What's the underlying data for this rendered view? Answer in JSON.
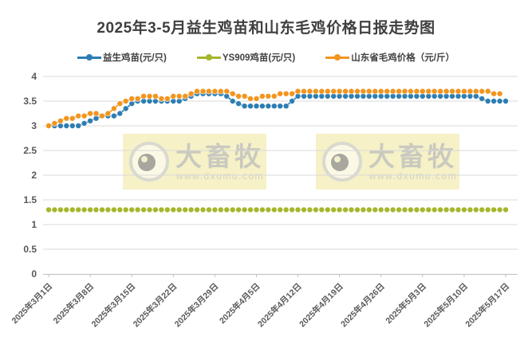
{
  "watermark": {
    "brand": "大畜牧",
    "url": "www.dxumu.com"
  },
  "chart_data": {
    "type": "line",
    "title": "2025年3-5月益生鸡苗和山东毛鸡价格日报走势图",
    "xlabel": "",
    "ylabel": "",
    "ylim": [
      0,
      4
    ],
    "y_step": 0.5,
    "grid": "horizontal",
    "legend_position": "top",
    "x_start_date": "2025年3月1日",
    "x_end_date": "2025年5月17日",
    "x_tick_interval_days": 7,
    "x_tick_labels": [
      "2025年3月1日",
      "2025年3月8日",
      "2025年3月15日",
      "2025年3月22日",
      "2025年3月29日",
      "2025年4月5日",
      "2025年4月12日",
      "2025年4月19日",
      "2025年4月26日",
      "2025年5月3日",
      "2025年5月10日",
      "2025年5月17日"
    ],
    "colors": {
      "grid": "#d9d9d9",
      "axis": "#bfbfbf",
      "axis_text": "#595959",
      "title_text": "#3f3f3f"
    },
    "series": [
      {
        "name": "益生鸡苗(元/只)",
        "color": "#2e7db2",
        "values": [
          3.0,
          3.0,
          3.0,
          3.0,
          3.0,
          3.0,
          3.05,
          3.1,
          3.15,
          3.2,
          3.2,
          3.2,
          3.25,
          3.35,
          3.45,
          3.5,
          3.5,
          3.5,
          3.5,
          3.5,
          3.5,
          3.5,
          3.5,
          3.55,
          3.6,
          3.65,
          3.65,
          3.65,
          3.65,
          3.65,
          3.6,
          3.5,
          3.45,
          3.4,
          3.4,
          3.4,
          3.4,
          3.4,
          3.4,
          3.4,
          3.4,
          3.5,
          3.6,
          3.6,
          3.6,
          3.6,
          3.6,
          3.6,
          3.6,
          3.6,
          3.6,
          3.6,
          3.6,
          3.6,
          3.6,
          3.6,
          3.6,
          3.6,
          3.6,
          3.6,
          3.6,
          3.6,
          3.6,
          3.6,
          3.6,
          3.6,
          3.6,
          3.6,
          3.6,
          3.6,
          3.6,
          3.6,
          3.6,
          3.55,
          3.5,
          3.5,
          3.5,
          3.5
        ]
      },
      {
        "name": "YS909鸡苗(元/只)",
        "color": "#a5b62a",
        "values": [
          1.3,
          1.3,
          1.3,
          1.3,
          1.3,
          1.3,
          1.3,
          1.3,
          1.3,
          1.3,
          1.3,
          1.3,
          1.3,
          1.3,
          1.3,
          1.3,
          1.3,
          1.3,
          1.3,
          1.3,
          1.3,
          1.3,
          1.3,
          1.3,
          1.3,
          1.3,
          1.3,
          1.3,
          1.3,
          1.3,
          1.3,
          1.3,
          1.3,
          1.3,
          1.3,
          1.3,
          1.3,
          1.3,
          1.3,
          1.3,
          1.3,
          1.3,
          1.3,
          1.3,
          1.3,
          1.3,
          1.3,
          1.3,
          1.3,
          1.3,
          1.3,
          1.3,
          1.3,
          1.3,
          1.3,
          1.3,
          1.3,
          1.3,
          1.3,
          1.3,
          1.3,
          1.3,
          1.3,
          1.3,
          1.3,
          1.3,
          1.3,
          1.3,
          1.3,
          1.3,
          1.3,
          1.3,
          1.3,
          1.3,
          1.3,
          1.3,
          1.3,
          1.3
        ]
      },
      {
        "name": "山东省毛鸡价格（元/斤）",
        "color": "#f2951f",
        "values": [
          3.0,
          3.05,
          3.1,
          3.15,
          3.15,
          3.2,
          3.2,
          3.25,
          3.25,
          3.2,
          3.25,
          3.35,
          3.45,
          3.5,
          3.55,
          3.55,
          3.6,
          3.6,
          3.6,
          3.55,
          3.55,
          3.6,
          3.6,
          3.6,
          3.65,
          3.7,
          3.7,
          3.7,
          3.7,
          3.7,
          3.7,
          3.65,
          3.6,
          3.6,
          3.55,
          3.55,
          3.6,
          3.6,
          3.6,
          3.65,
          3.65,
          3.65,
          3.7,
          3.7,
          3.7,
          3.7,
          3.7,
          3.7,
          3.7,
          3.7,
          3.7,
          3.7,
          3.7,
          3.7,
          3.7,
          3.7,
          3.7,
          3.7,
          3.7,
          3.7,
          3.7,
          3.7,
          3.7,
          3.7,
          3.7,
          3.7,
          3.7,
          3.7,
          3.7,
          3.7,
          3.7,
          3.7,
          3.7,
          3.7,
          3.7,
          3.65,
          3.65,
          null
        ]
      }
    ]
  }
}
